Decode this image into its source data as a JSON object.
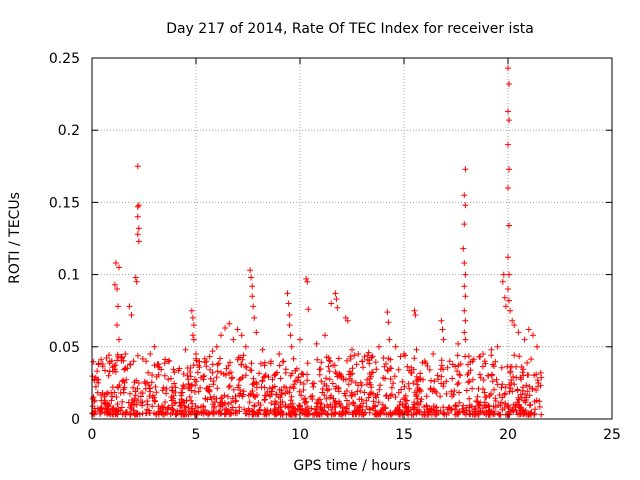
{
  "chart_data": {
    "type": "scatter",
    "title": "Day 217 of 2014, Rate Of TEC Index for receiver ista",
    "xlabel": "GPS time / hours",
    "ylabel": "ROTI / TECUs",
    "xlim": [
      0,
      25
    ],
    "ylim": [
      0,
      0.25
    ],
    "x_ticks": [
      0,
      5,
      10,
      15,
      20,
      25
    ],
    "x_tick_labels": [
      "0",
      "5",
      "10",
      "15",
      "20",
      "25"
    ],
    "y_ticks": [
      0,
      0.05,
      0.1,
      0.15,
      0.2,
      0.25
    ],
    "y_tick_labels": [
      "0",
      "0.05",
      "0.1",
      "0.15",
      "0.2",
      "0.25"
    ],
    "grid": true,
    "marker": "+",
    "marker_color": "#ff0000",
    "series": [
      {
        "points": [
          [
            0.1,
            0.012
          ],
          [
            0.3,
            0.025
          ],
          [
            0.5,
            0.018
          ],
          [
            0.8,
            0.03
          ],
          [
            1.0,
            0.022
          ],
          [
            1.1,
            0.093
          ],
          [
            1.15,
            0.108
          ],
          [
            1.2,
            0.09
          ],
          [
            1.3,
            0.105
          ],
          [
            1.25,
            0.078
          ],
          [
            1.2,
            0.065
          ],
          [
            1.3,
            0.055
          ],
          [
            1.6,
            0.045
          ],
          [
            1.8,
            0.078
          ],
          [
            1.9,
            0.072
          ],
          [
            2.0,
            0.04
          ],
          [
            2.1,
            0.098
          ],
          [
            2.15,
            0.095
          ],
          [
            2.2,
            0.147
          ],
          [
            2.25,
            0.148
          ],
          [
            2.2,
            0.14
          ],
          [
            2.25,
            0.132
          ],
          [
            2.2,
            0.128
          ],
          [
            2.25,
            0.123
          ],
          [
            2.2,
            0.175
          ],
          [
            2.6,
            0.04
          ],
          [
            2.8,
            0.045
          ],
          [
            3.0,
            0.05
          ],
          [
            3.2,
            0.038
          ],
          [
            3.5,
            0.03
          ],
          [
            3.8,
            0.028
          ],
          [
            4.2,
            0.035
          ],
          [
            4.5,
            0.048
          ],
          [
            4.8,
            0.075
          ],
          [
            4.85,
            0.07
          ],
          [
            4.9,
            0.065
          ],
          [
            4.85,
            0.058
          ],
          [
            4.9,
            0.055
          ],
          [
            5.0,
            0.045
          ],
          [
            5.5,
            0.04
          ],
          [
            5.8,
            0.047
          ],
          [
            6.0,
            0.05
          ],
          [
            6.2,
            0.058
          ],
          [
            6.4,
            0.063
          ],
          [
            6.6,
            0.066
          ],
          [
            6.8,
            0.055
          ],
          [
            7.0,
            0.062
          ],
          [
            7.2,
            0.058
          ],
          [
            7.4,
            0.05
          ],
          [
            7.6,
            0.103
          ],
          [
            7.65,
            0.098
          ],
          [
            7.7,
            0.092
          ],
          [
            7.7,
            0.085
          ],
          [
            7.75,
            0.078
          ],
          [
            7.8,
            0.07
          ],
          [
            7.9,
            0.06
          ],
          [
            8.2,
            0.048
          ],
          [
            8.6,
            0.04
          ],
          [
            9.0,
            0.045
          ],
          [
            9.4,
            0.087
          ],
          [
            9.45,
            0.08
          ],
          [
            9.5,
            0.072
          ],
          [
            9.5,
            0.065
          ],
          [
            9.55,
            0.058
          ],
          [
            9.6,
            0.05
          ],
          [
            10.0,
            0.055
          ],
          [
            10.3,
            0.097
          ],
          [
            10.35,
            0.095
          ],
          [
            10.4,
            0.076
          ],
          [
            10.8,
            0.052
          ],
          [
            11.2,
            0.058
          ],
          [
            11.5,
            0.08
          ],
          [
            11.7,
            0.087
          ],
          [
            11.75,
            0.083
          ],
          [
            11.8,
            0.077
          ],
          [
            12.2,
            0.07
          ],
          [
            12.3,
            0.068
          ],
          [
            12.5,
            0.048
          ],
          [
            12.8,
            0.045
          ],
          [
            13.0,
            0.04
          ],
          [
            13.3,
            0.046
          ],
          [
            13.8,
            0.05
          ],
          [
            14.2,
            0.074
          ],
          [
            14.25,
            0.067
          ],
          [
            14.3,
            0.055
          ],
          [
            14.6,
            0.05
          ],
          [
            15.0,
            0.045
          ],
          [
            15.5,
            0.075
          ],
          [
            15.55,
            0.072
          ],
          [
            15.6,
            0.048
          ],
          [
            16.0,
            0.04
          ],
          [
            16.4,
            0.045
          ],
          [
            16.8,
            0.068
          ],
          [
            16.85,
            0.062
          ],
          [
            16.9,
            0.055
          ],
          [
            17.2,
            0.04
          ],
          [
            17.6,
            0.052
          ],
          [
            17.95,
            0.173
          ],
          [
            17.9,
            0.155
          ],
          [
            17.95,
            0.148
          ],
          [
            17.9,
            0.135
          ],
          [
            17.85,
            0.118
          ],
          [
            17.9,
            0.108
          ],
          [
            17.95,
            0.1
          ],
          [
            17.9,
            0.092
          ],
          [
            17.95,
            0.085
          ],
          [
            17.9,
            0.075
          ],
          [
            17.95,
            0.068
          ],
          [
            17.9,
            0.06
          ],
          [
            17.95,
            0.055
          ],
          [
            18.3,
            0.04
          ],
          [
            18.8,
            0.045
          ],
          [
            19.2,
            0.048
          ],
          [
            19.5,
            0.05
          ],
          [
            19.75,
            0.095
          ],
          [
            19.8,
            0.1
          ],
          [
            19.85,
            0.084
          ],
          [
            19.9,
            0.078
          ],
          [
            20.0,
            0.243
          ],
          [
            20.05,
            0.232
          ],
          [
            20.0,
            0.213
          ],
          [
            20.05,
            0.207
          ],
          [
            20.0,
            0.19
          ],
          [
            20.05,
            0.173
          ],
          [
            20.0,
            0.16
          ],
          [
            20.05,
            0.134
          ],
          [
            20.0,
            0.112
          ],
          [
            20.05,
            0.1
          ],
          [
            20.0,
            0.09
          ],
          [
            20.05,
            0.082
          ],
          [
            20.1,
            0.075
          ],
          [
            20.2,
            0.068
          ],
          [
            20.3,
            0.065
          ],
          [
            20.5,
            0.06
          ],
          [
            20.8,
            0.055
          ],
          [
            21.0,
            0.062
          ],
          [
            21.2,
            0.058
          ],
          [
            21.4,
            0.05
          ]
        ]
      }
    ],
    "dense_band": {
      "x_range": [
        0,
        21.6
      ],
      "y_min": 0.003,
      "y_typical_max": 0.035
    }
  }
}
